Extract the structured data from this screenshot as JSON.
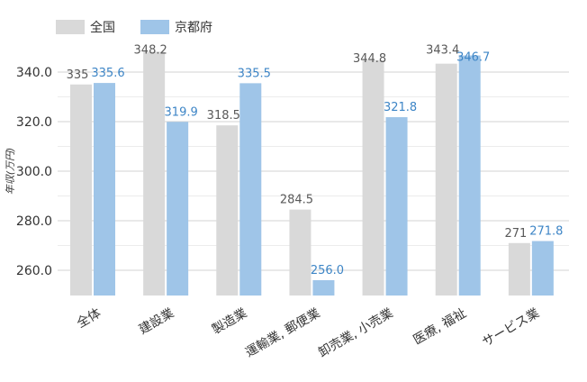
{
  "colors": {
    "series0": "#d9d9d9",
    "series1": "#9fc5e8",
    "label1": "#3d85c6",
    "label0": "#595959",
    "grid": "#d3d3d3"
  },
  "legend": {
    "items": [
      "全国",
      "京都府"
    ]
  },
  "chart_data": {
    "type": "bar",
    "ylabel": "年収(万円)",
    "ylim": [
      250,
      350
    ],
    "yticks": [
      260.0,
      280.0,
      300.0,
      320.0,
      340.0
    ],
    "ytick_labels": [
      "260.0",
      "280.0",
      "300.0",
      "320.0",
      "340.0"
    ],
    "categories": [
      "全体",
      "建設業",
      "製造業",
      "運輸業, 郵便業",
      "卸売業, 小売業",
      "医療, 福祉",
      "サービス業"
    ],
    "series": [
      {
        "name": "全国",
        "values": [
          335.0,
          348.2,
          318.5,
          284.5,
          344.8,
          343.4,
          271.0
        ],
        "labels": [
          "335",
          "348.2",
          "318.5",
          "284.5",
          "344.8",
          "343.4",
          "271"
        ]
      },
      {
        "name": "京都府",
        "values": [
          335.6,
          319.9,
          335.5,
          256.0,
          321.8,
          346.7,
          271.8
        ],
        "labels": [
          "335.6",
          "319.9",
          "335.5",
          "256.0",
          "321.8",
          "346.7",
          "271.8"
        ]
      }
    ],
    "grid": true,
    "legend_position": "top-left"
  }
}
